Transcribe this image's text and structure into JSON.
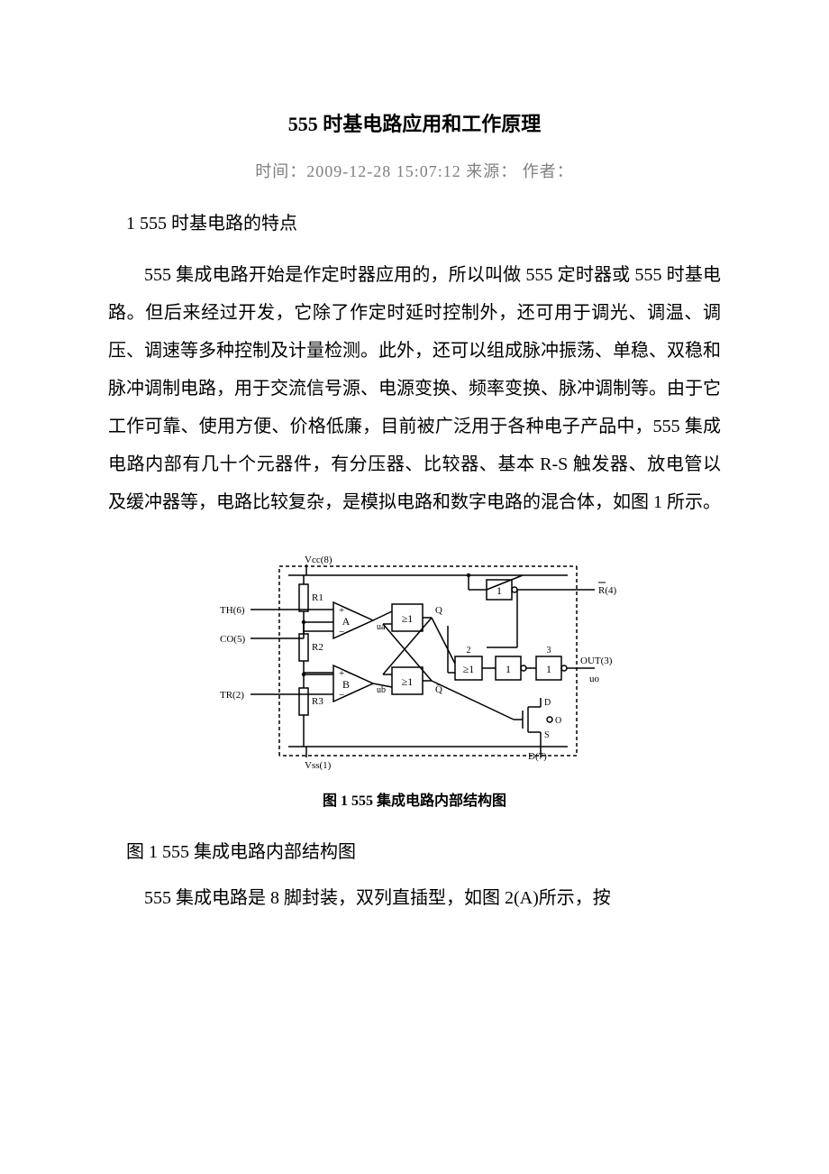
{
  "title": "555 时基电路应用和工作原理",
  "meta": {
    "time_label": "时间：",
    "time_value": "2009-12-28 15:07:12",
    "source_label": "  来源：",
    "author_label": "   作者："
  },
  "section1_heading": "1  555 时基电路的特点",
  "para1": "555 集成电路开始是作定时器应用的，所以叫做 555 定时器或 555 时基电路。但后来经过开发，它除了作定时延时控制外，还可用于调光、调温、调压、调速等多种控制及计量检测。此外，还可以组成脉冲振荡、单稳、双稳和脉冲调制电路，用于交流信号源、电源变换、频率变换、脉冲调制等。由于它工作可靠、使用方便、价格低廉，目前被广泛用于各种电子产品中，555 集成电路内部有几十个元器件，有分压器、比较器、基本 R-S 触发器、放电管以及缓冲器等，电路比较复杂，是模拟电路和数字电路的混合体，如图 1 所示。",
  "figure": {
    "caption_embedded": "图 1   555 集成电路内部结构图",
    "caption_below": "图 1 555 集成电路内部结构图",
    "labels": {
      "vcc": "Vcc(8)",
      "vss": "Vss(1)",
      "th": "TH(6)",
      "co": "CO(5)",
      "tr": "TR(2)",
      "r4": "R(4)",
      "out": "OUT(3)",
      "uo": "uo",
      "d7": "D(7)",
      "r1": "R1",
      "r2": "R2",
      "r3": "R3",
      "a": "A",
      "b": "B",
      "ua": "ua",
      "ub": "ub",
      "q": "Q",
      "qbar": "Q̅",
      "ge1": "≥1",
      "one": "1",
      "two": "2",
      "three": "3",
      "d": "D",
      "s": "S",
      "o": "O"
    },
    "style": {
      "stroke": "#000000",
      "stroke_width": 1.5,
      "dash": "4,3",
      "bg": "#ffffff",
      "font_family": "Times, serif",
      "font_size_small": 11,
      "font_size_med": 12
    }
  },
  "para2": "555 集成电路是 8 脚封装，双列直插型，如图 2(A)所示，按"
}
